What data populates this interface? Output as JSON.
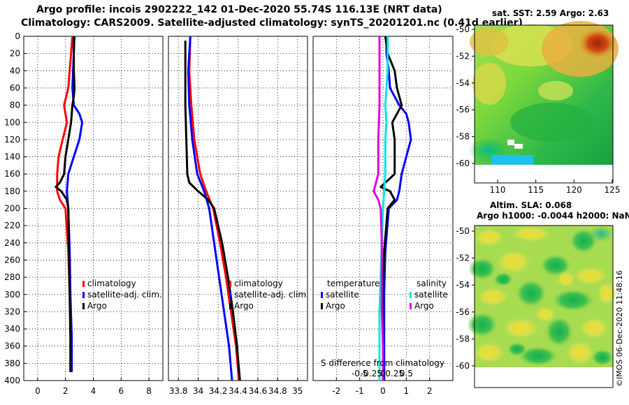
{
  "title_line1": "Argo profile: incois 2902222_142 01-Dec-2020 55.74S 116.13E (NRT data)",
  "title_line2": "Climatology: CARS2009. Satellite-adjusted climatology: synTS_20201201.nc (0.41d earlier)",
  "map_top_title": "sat. SST: 2.59 Argo: 2.63",
  "map_bottom_title1": "Altim. SLA: 0.068",
  "map_bottom_title2": "Argo h1000: -0.0044 h2000: NaN",
  "watermark": "©IMOS 06-Dec-2020 11:48:16",
  "colors": {
    "climatology": "#ff0000",
    "satellite": "#0000ff",
    "argo": "#000000",
    "sal_sat": "#00e5e5",
    "sal_argo": "#e000e0"
  },
  "chart_data": [
    {
      "type": "line",
      "name": "temperature",
      "xlim": [
        -1,
        9
      ],
      "ylim": [
        400,
        0
      ],
      "xticks": [
        0,
        2,
        4,
        6,
        8
      ],
      "yticks": [
        0,
        20,
        40,
        60,
        80,
        100,
        120,
        140,
        160,
        180,
        200,
        220,
        240,
        260,
        280,
        300,
        320,
        340,
        360,
        380,
        400
      ],
      "legend": [
        "climatology",
        "satellite-adj. clim.",
        "Argo"
      ],
      "series": [
        {
          "name": "climatology",
          "color": "#ff0000",
          "depth": [
            0,
            20,
            40,
            60,
            80,
            100,
            120,
            140,
            160,
            170,
            180,
            190,
            200,
            250,
            300,
            350,
            390
          ],
          "values": [
            2.5,
            2.4,
            2.3,
            2.2,
            1.9,
            2.1,
            1.8,
            1.5,
            1.4,
            1.4,
            1.4,
            1.6,
            2.0,
            2.2,
            2.3,
            2.4,
            2.4
          ]
        },
        {
          "name": "satellite-adj. clim.",
          "color": "#0000ff",
          "depth": [
            0,
            20,
            40,
            60,
            80,
            90,
            100,
            120,
            140,
            160,
            180,
            200,
            250,
            300,
            350,
            390
          ],
          "values": [
            2.65,
            2.6,
            2.55,
            2.5,
            2.6,
            3.0,
            3.2,
            3.0,
            2.6,
            2.2,
            2.1,
            2.2,
            2.3,
            2.35,
            2.45,
            2.45
          ]
        },
        {
          "name": "Argo",
          "color": "#000000",
          "depth": [
            0,
            20,
            40,
            60,
            70,
            80,
            100,
            120,
            140,
            160,
            170,
            175,
            180,
            190,
            200,
            250,
            300,
            350,
            390
          ],
          "values": [
            2.6,
            2.6,
            2.6,
            2.65,
            2.6,
            2.5,
            2.4,
            2.2,
            2.0,
            1.9,
            1.6,
            1.3,
            1.7,
            2.1,
            2.2,
            2.25,
            2.3,
            2.35,
            2.35
          ]
        }
      ]
    },
    {
      "type": "line",
      "name": "salinity",
      "xlim": [
        33.7,
        35.1
      ],
      "ylim": [
        400,
        0
      ],
      "xticks": [
        33.8,
        34,
        34.2,
        34.4,
        34.6,
        34.8,
        35
      ],
      "xtick_labels": [
        "33.8",
        "34",
        "34.2",
        "34.4",
        "34.6",
        "34.8",
        "35"
      ],
      "legend": [
        "climatology",
        "satellite-adj. clim.",
        "Argo"
      ],
      "series": [
        {
          "name": "climatology",
          "color": "#ff0000",
          "depth": [
            0,
            40,
            80,
            120,
            160,
            180,
            200,
            240,
            280,
            320,
            360,
            400
          ],
          "values": [
            33.92,
            33.91,
            33.93,
            33.96,
            34.02,
            34.08,
            34.15,
            34.22,
            34.28,
            34.33,
            34.38,
            34.41
          ]
        },
        {
          "name": "satellite-adj. clim.",
          "color": "#0000ff",
          "depth": [
            0,
            40,
            80,
            120,
            160,
            180,
            200,
            240,
            280,
            320,
            360,
            400
          ],
          "values": [
            33.92,
            33.9,
            33.91,
            33.94,
            33.99,
            34.06,
            34.11,
            34.16,
            34.21,
            34.26,
            34.31,
            34.34
          ]
        },
        {
          "name": "Argo",
          "color": "#000000",
          "depth": [
            5,
            40,
            80,
            120,
            160,
            170,
            180,
            190,
            200,
            240,
            280,
            320,
            360,
            400
          ],
          "values": [
            33.87,
            33.87,
            33.87,
            33.88,
            33.89,
            33.91,
            34.0,
            34.1,
            34.16,
            34.24,
            34.3,
            34.35,
            34.39,
            34.42
          ]
        }
      ]
    },
    {
      "type": "line",
      "name": "difference from climatology",
      "xlim": [
        -3,
        3
      ],
      "ylim": [
        400,
        0
      ],
      "xticks": [
        -2,
        -1,
        0,
        1,
        2
      ],
      "xtick_labels": [
        "-2",
        "-1",
        "0",
        "1",
        "2"
      ],
      "s_difference_label": "S difference from climatology",
      "s_ticks": [
        -0.5,
        -0.25,
        0,
        0.25,
        0.5
      ],
      "s_tick_labels": [
        "-0.5",
        "-0.25",
        "0",
        "0.25",
        "0.5"
      ],
      "legend_temperature_title": "temperature",
      "legend_salinity_title": "salinity",
      "legend_temperature": [
        "satellite",
        "Argo"
      ],
      "legend_salinity": [
        "satellite",
        "Argo"
      ],
      "series": [
        {
          "name": "temperature satellite",
          "color": "#0000ff",
          "depth": [
            0,
            20,
            40,
            60,
            80,
            90,
            100,
            120,
            140,
            160,
            180,
            190,
            200,
            250,
            300,
            350,
            400
          ],
          "values": [
            0.15,
            0.15,
            0.25,
            0.3,
            0.7,
            1.0,
            1.1,
            1.2,
            1.0,
            0.8,
            0.7,
            0.6,
            0.25,
            0.1,
            0.05,
            0.05,
            0.05
          ]
        },
        {
          "name": "temperature Argo",
          "color": "#000000",
          "depth": [
            0,
            20,
            40,
            60,
            80,
            100,
            120,
            140,
            160,
            175,
            180,
            190,
            200,
            250,
            300,
            350,
            400
          ],
          "values": [
            0.1,
            0.2,
            0.5,
            0.6,
            0.8,
            0.4,
            0.5,
            0.5,
            0.5,
            -0.1,
            0.3,
            0.5,
            0.2,
            0.05,
            0.0,
            0.0,
            0.0
          ]
        },
        {
          "name": "salinity satellite",
          "color": "#00e5e5",
          "depth": [
            0,
            40,
            80,
            100,
            120,
            160,
            200,
            240,
            280,
            320,
            360,
            400
          ],
          "values": [
            0.2,
            0.2,
            0.1,
            0.15,
            0.1,
            0.1,
            0.0,
            -0.05,
            -0.1,
            -0.15,
            -0.15,
            -0.15
          ]
        },
        {
          "name": "salinity Argo",
          "color": "#e000e0",
          "depth": [
            0,
            40,
            80,
            120,
            160,
            170,
            180,
            190,
            200,
            240,
            280,
            320,
            360,
            400
          ],
          "values": [
            -0.15,
            -0.15,
            -0.15,
            -0.2,
            -0.2,
            -0.3,
            -0.4,
            -0.2,
            -0.1,
            -0.05,
            -0.05,
            -0.05,
            0.0,
            0.0
          ]
        }
      ]
    },
    {
      "type": "heatmap",
      "name": "sat. SST map",
      "title": "sat. SST: 2.59 Argo: 2.63",
      "xticks": [
        110,
        115,
        120,
        125
      ],
      "yticks": [
        -50,
        -52,
        -54,
        -56,
        -58,
        -60
      ],
      "ytick_labels": [
        "-50",
        "-52",
        "-54",
        "-56",
        "-58",
        "-60"
      ]
    },
    {
      "type": "heatmap",
      "name": "altimetry SLA map",
      "title": "Altim. SLA: 0.068",
      "subtitle": "Argo h1000: -0.0044 h2000: NaN",
      "yticks": [
        -50,
        -52,
        -54,
        -56,
        -58,
        -60
      ],
      "ytick_labels": [
        "-50",
        "-52",
        "-54",
        "-56",
        "-58",
        "-60"
      ]
    }
  ]
}
